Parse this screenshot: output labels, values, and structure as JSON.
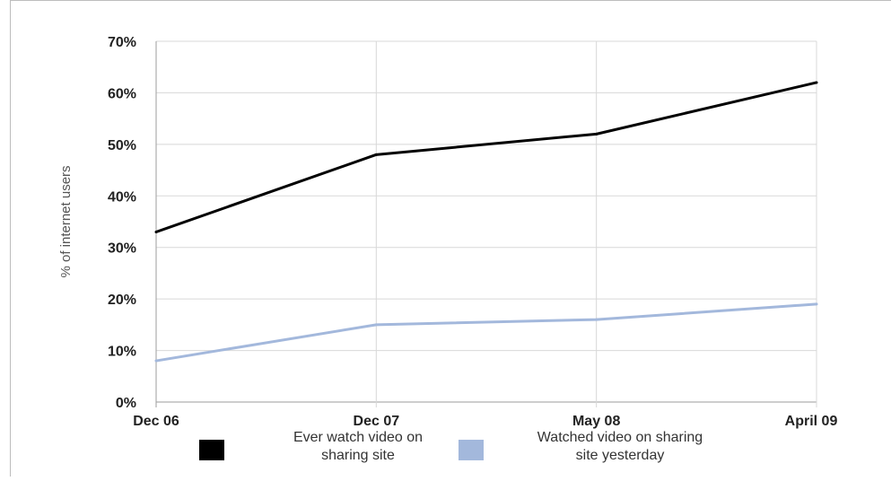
{
  "chart_data": {
    "type": "line",
    "title": "",
    "xlabel": "",
    "ylabel": "% of internet users",
    "categories": [
      "Dec 06",
      "Dec 07",
      "May 08",
      "April 09"
    ],
    "ylim": [
      0,
      70
    ],
    "yticks": [
      "0%",
      "10%",
      "20%",
      "30%",
      "40%",
      "50%",
      "60%",
      "70%"
    ],
    "grid": true,
    "legend": "bottom",
    "series": [
      {
        "name_lines": [
          "Ever watch video on",
          "sharing site"
        ],
        "color": "#000000",
        "values": [
          33,
          48,
          52,
          62
        ]
      },
      {
        "name_lines": [
          "Watched video on sharing",
          "site yesterday"
        ],
        "color": "#a3b8dc",
        "values": [
          8,
          15,
          16,
          19
        ]
      }
    ]
  }
}
